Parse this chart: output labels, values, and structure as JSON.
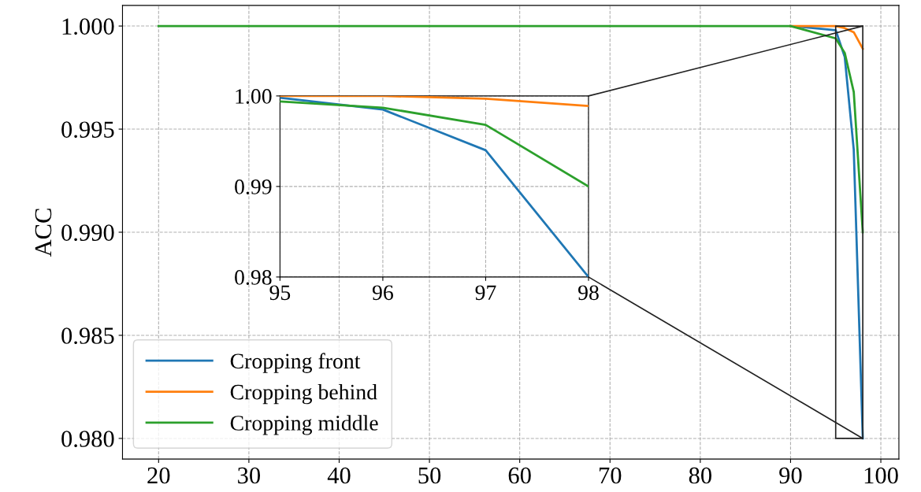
{
  "chart_data": [
    {
      "type": "line",
      "ylabel": "ACC",
      "xlim": [
        16,
        102
      ],
      "ylim": [
        0.979,
        1.001
      ],
      "xticks": [
        20,
        30,
        40,
        50,
        60,
        70,
        80,
        90,
        100
      ],
      "yticks": [
        {
          "value": 0.98,
          "label": "0.980"
        },
        {
          "value": 0.985,
          "label": "0.985"
        },
        {
          "value": 0.99,
          "label": "0.990"
        },
        {
          "value": 0.995,
          "label": "0.995"
        },
        {
          "value": 1.0,
          "label": "1.000"
        }
      ],
      "grid": true,
      "legend": "bottom left",
      "x": [
        20,
        30,
        40,
        50,
        60,
        70,
        80,
        90,
        95,
        96,
        97,
        98
      ],
      "series": [
        {
          "name": "Cropping front",
          "color": "#1f77b4",
          "values": [
            null,
            null,
            null,
            null,
            null,
            null,
            null,
            1.0,
            0.9998,
            0.9985,
            0.994,
            0.98
          ]
        },
        {
          "name": "Cropping behind",
          "color": "#ff7f0e",
          "values": [
            null,
            null,
            null,
            null,
            null,
            null,
            null,
            1.0,
            1.0,
            0.9999,
            0.9997,
            0.9989
          ]
        },
        {
          "name": "Cropping middle",
          "color": "#2ca02c",
          "values": [
            1.0,
            1.0,
            1.0,
            1.0,
            1.0,
            1.0,
            1.0,
            1.0,
            0.9994,
            0.9987,
            0.9968,
            0.99
          ]
        }
      ]
    },
    {
      "type": "line",
      "xlim": [
        95,
        98
      ],
      "ylim": [
        0.98,
        1.0
      ],
      "xticks": [
        95,
        96,
        97,
        98
      ],
      "yticks": [
        0.98,
        0.99,
        {
          "value": 1.0,
          "label": "1.00"
        }
      ],
      "grid": true,
      "x": [
        95,
        96,
        97,
        98
      ],
      "series": [
        {
          "color": "#1f77b4",
          "values": [
            0.9998,
            0.9985,
            0.994,
            0.98
          ]
        },
        {
          "color": "#ff7f0e",
          "values": [
            1.0,
            1.0,
            0.9997,
            0.9989
          ]
        },
        {
          "color": "#2ca02c",
          "values": [
            0.9994,
            0.9987,
            0.9968,
            0.99
          ]
        }
      ]
    }
  ]
}
